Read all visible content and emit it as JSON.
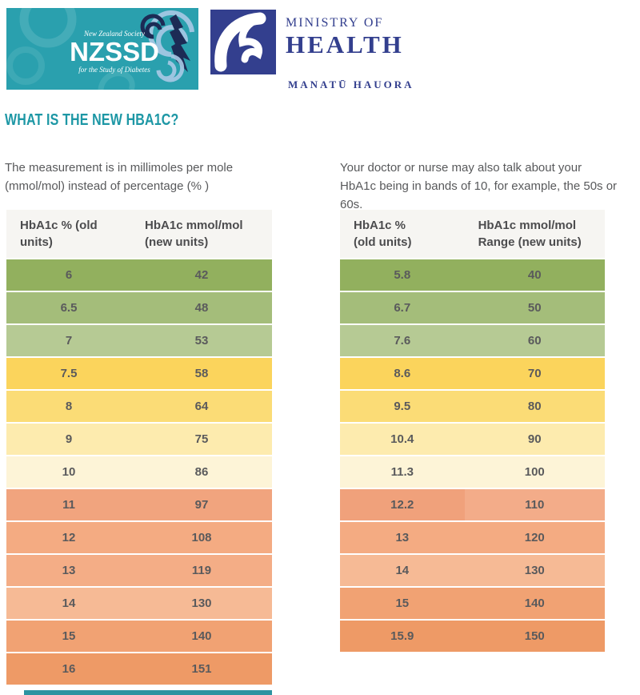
{
  "header": {
    "nzssd_logo": {
      "society_line": "New Zealand Society",
      "acronym": "NZSSD",
      "tagline": "for the Study of Diabetes",
      "bg_color": "#2aa0ae",
      "swirl_color": "#59b7c1",
      "map_color": "#1c2b55"
    },
    "moh_logo": {
      "title_line1": "MINISTRY OF",
      "title_line2": "HEALTH",
      "subtitle": "MANATŪ HAUORA",
      "box_color": "#333f8e",
      "text_color": "#333f8e"
    }
  },
  "page_title": "WHAT IS THE NEW HBA1C?",
  "title_color": "#1d97a5",
  "intro": {
    "left_line1": "The measurement is in millimoles per mole",
    "left_line2": "(mmol/mol) instead of percentage (% )",
    "right_line1": "Your doctor or nurse may also talk about your",
    "right_line2": "HbA1c being in bands of 10, for example, the 50s or 60s."
  },
  "left_table": {
    "headers": [
      {
        "line1": "HbA1c % (old",
        "line2": "units)"
      },
      {
        "line1": "HbA1c mmol/mol",
        "line2": "(new units)"
      }
    ],
    "rows": [
      {
        "old": "6",
        "new": "42",
        "color": "#92b05e"
      },
      {
        "old": "6.5",
        "new": "48",
        "color": "#a4bd7a"
      },
      {
        "old": "7",
        "new": "53",
        "color": "#b6ca94"
      },
      {
        "old": "7.5",
        "new": "58",
        "color": "#fbd45c"
      },
      {
        "old": "8",
        "new": "64",
        "color": "#fbdc76"
      },
      {
        "old": "9",
        "new": "75",
        "color": "#fdebae"
      },
      {
        "old": "10",
        "new": "86",
        "color": "#fdf4d7"
      },
      {
        "old": "11",
        "new": "97",
        "color": "#f1a47e"
      },
      {
        "old": "12",
        "new": "108",
        "color": "#f4ab82"
      },
      {
        "old": "13",
        "new": "119",
        "color": "#f4ad86"
      },
      {
        "old": "14",
        "new": "130",
        "color": "#f6ba95"
      },
      {
        "old": "15",
        "new": "140",
        "color": "#f1a273"
      },
      {
        "old": "16",
        "new": "151",
        "color": "#ee9a66"
      }
    ]
  },
  "right_table": {
    "headers": [
      {
        "line1": "HbA1c %",
        "line2": "(old units)"
      },
      {
        "line1": "HbA1c mmol/mol",
        "line2": "Range (new units)"
      }
    ],
    "rows": [
      {
        "old": "5.8",
        "new": "40",
        "color": "#92b05e"
      },
      {
        "old": "6.7",
        "new": "50",
        "color": "#a4bd7a"
      },
      {
        "old": "7.6",
        "new": "60",
        "color": "#b6ca94"
      },
      {
        "old": "8.6",
        "new": "70",
        "color": "#fbd45c"
      },
      {
        "old": "9.5",
        "new": "80",
        "color": "#fbdc76"
      },
      {
        "old": "10.4",
        "new": "90",
        "color": "#fdebae"
      },
      {
        "old": "11.3",
        "new": "100",
        "color": "#fdf4d7"
      },
      {
        "old": "12.2",
        "new": "110",
        "color": "#f0a17b",
        "color2": "#f3ac89"
      },
      {
        "old": "13",
        "new": "120",
        "color": "#f4ab82"
      },
      {
        "old": "14",
        "new": "130",
        "color": "#f6ba95"
      },
      {
        "old": "15",
        "new": "140",
        "color": "#f1a273"
      },
      {
        "old": "15.9",
        "new": "150",
        "color": "#ee9a66"
      }
    ]
  }
}
